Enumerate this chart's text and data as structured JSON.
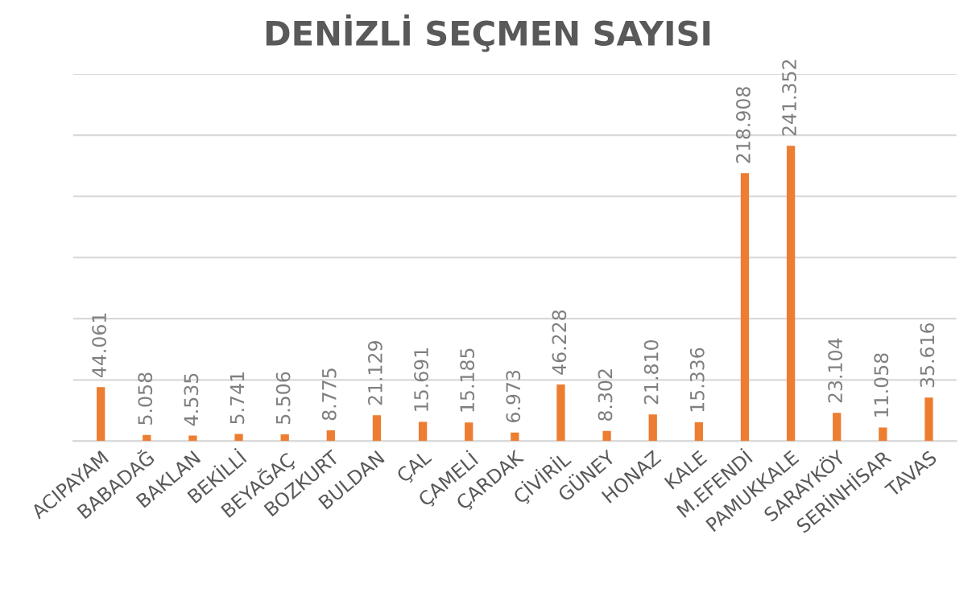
{
  "chart_data": {
    "type": "bar",
    "title": "DENİZLİ SEÇMEN SAYISI",
    "categories": [
      "ACIPAYAM",
      "BABADAĞ",
      "BAKLAN",
      "BEKİLLİ",
      "BEYAĞAÇ",
      "BOZKURT",
      "BULDAN",
      "ÇAL",
      "ÇAMELİ",
      "ÇARDAK",
      "ÇİVİRİL",
      "GÜNEY",
      "HONAZ",
      "KALE",
      "M.EFENDİ",
      "PAMUKKALE",
      "SARAYKÖY",
      "SERİNHİSAR",
      "TAVAS"
    ],
    "values": [
      44061,
      5058,
      4535,
      5741,
      5506,
      8775,
      21129,
      15691,
      15185,
      6973,
      46228,
      8302,
      21810,
      15336,
      218908,
      241352,
      23104,
      11058,
      35616
    ],
    "value_labels": [
      "44.061",
      "5.058",
      "4.535",
      "5.741",
      "5.506",
      "8.775",
      "21.129",
      "15.691",
      "15.185",
      "6.973",
      "46.228",
      "8.302",
      "21.810",
      "15.336",
      "218.908",
      "241.352",
      "23.104",
      "11.058",
      "35.616"
    ],
    "color": "#ed7d31",
    "ylim": [
      0,
      300000
    ],
    "yticks": [
      {
        "value": 0,
        "label": null
      },
      {
        "value": 50000,
        "label": null
      },
      {
        "value": 100000,
        "label": null
      },
      {
        "value": 150000,
        "label": null
      },
      {
        "value": 200000,
        "label": null
      },
      {
        "value": 250000,
        "label": null
      },
      {
        "value": 300000,
        "label": null
      }
    ],
    "grid": "y",
    "tick_labels": "x"
  }
}
